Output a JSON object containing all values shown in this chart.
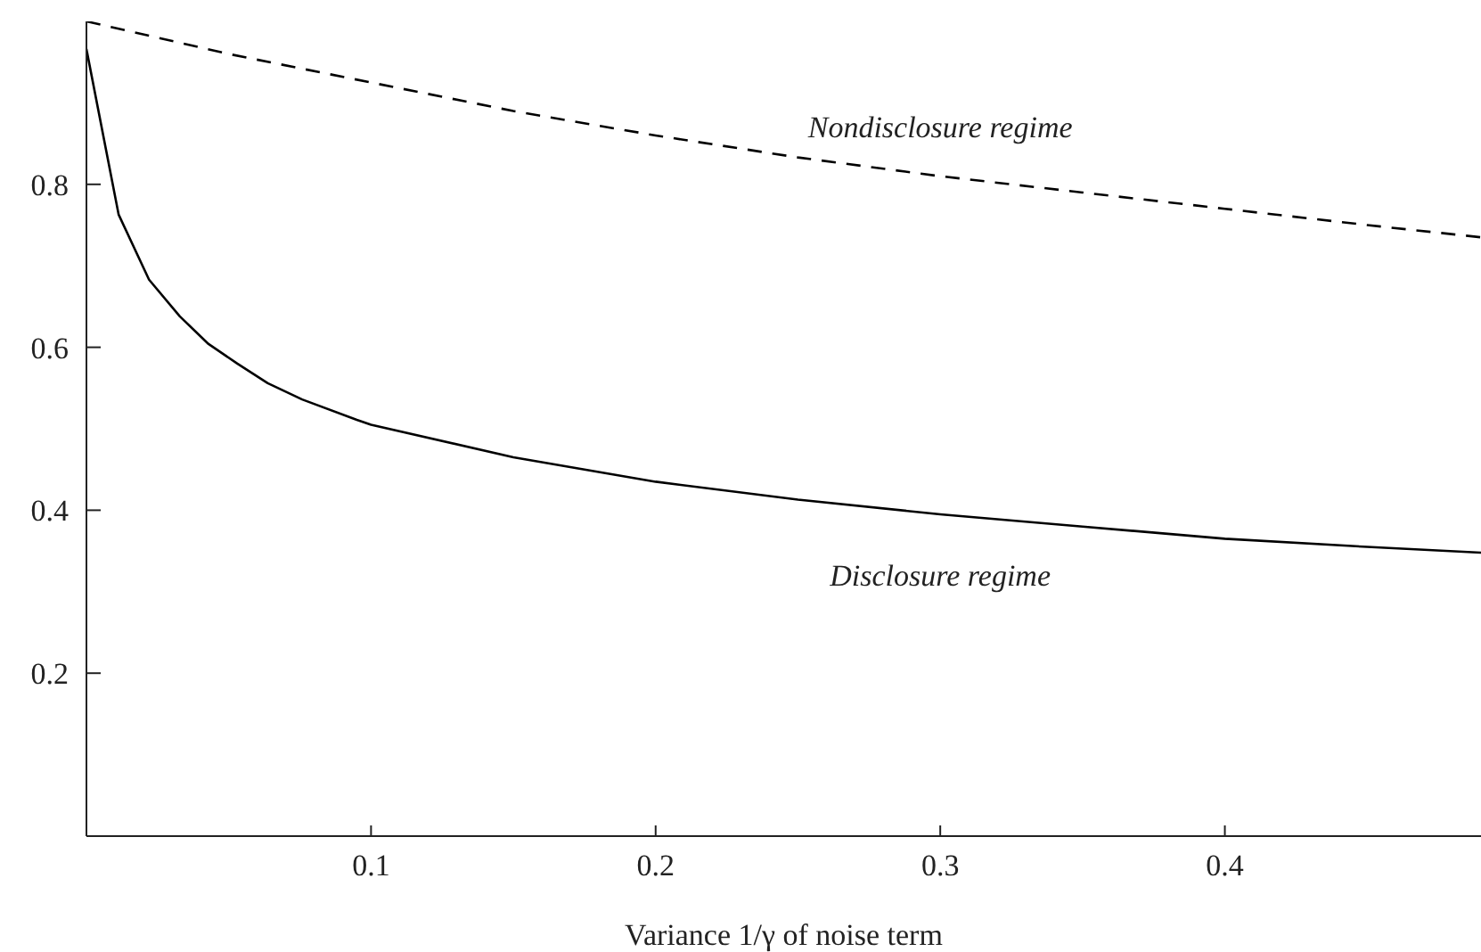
{
  "chart_data": {
    "type": "line",
    "xlabel": "Variance 1/γ of noise term",
    "xlim": [
      0,
      0.49
    ],
    "xticks": [
      0.1,
      0.2,
      0.3,
      0.4
    ],
    "ylim": [
      0,
      1
    ],
    "yticks": [
      0.2,
      0.4,
      0.6,
      0.8
    ],
    "series": [
      {
        "name": "Nondisclosure regime",
        "color": "#000000",
        "line_style": "dashed",
        "x": [
          0,
          0.05,
          0.1,
          0.15,
          0.2,
          0.25,
          0.3,
          0.35,
          0.4,
          0.45,
          0.49
        ],
        "values": [
          1.0,
          0.96,
          0.925,
          0.89,
          0.86,
          0.833,
          0.81,
          0.79,
          0.77,
          0.75,
          0.735
        ]
      },
      {
        "name": "Disclosure regime",
        "color": "#000000",
        "line_style": "solid",
        "x": [
          0,
          0.0113,
          0.022,
          0.0328,
          0.0429,
          0.053,
          0.0637,
          0.0758,
          0.095,
          0.1,
          0.15,
          0.2,
          0.25,
          0.3,
          0.35,
          0.4,
          0.45,
          0.49
        ],
        "values": [
          0.966,
          0.763,
          0.683,
          0.638,
          0.604,
          0.58,
          0.556,
          0.536,
          0.511,
          0.505,
          0.465,
          0.435,
          0.413,
          0.395,
          0.38,
          0.365,
          0.355,
          0.348
        ]
      }
    ],
    "legend": false,
    "grid": false,
    "marker": "none"
  }
}
